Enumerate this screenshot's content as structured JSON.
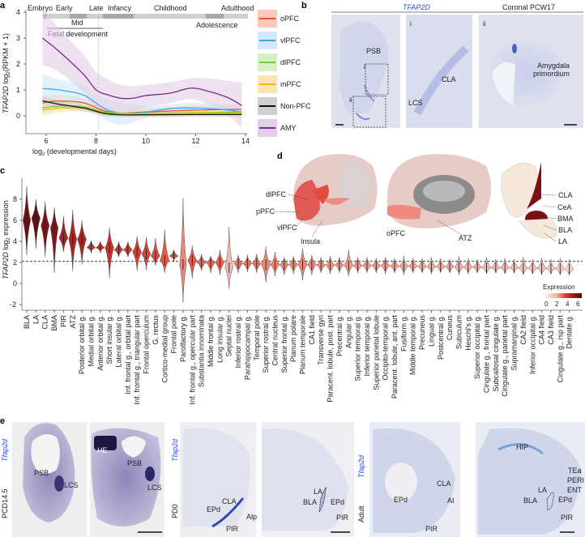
{
  "panels": {
    "a": "a",
    "b": "b",
    "c": "c",
    "d": "d",
    "e": "e"
  },
  "chart_data": [
    {
      "id": "panel-a",
      "type": "line",
      "xlabel_pre": "log",
      "xlabel_sub": "2",
      "xlabel_post": " (developmental days)",
      "ylabel_gene": "TFAP2D",
      "ylabel_pre": " log",
      "ylabel_sub": "2",
      "ylabel_post": "(RPKM + 1)",
      "xlim": [
        5.2,
        14.1
      ],
      "ylim": [
        -0.5,
        4.2
      ],
      "xticks": [
        6,
        8,
        10,
        12,
        14
      ],
      "yticks": [
        0,
        1,
        2,
        3,
        4
      ],
      "stages": {
        "embryo": "Embryo",
        "early": "Early",
        "mid": "Mid",
        "late": "Late",
        "infancy": "Infancy",
        "childhood": "Childhood",
        "adolescence": "Adolescence",
        "adulthood": "Adulthood",
        "fetal": "Fetal development"
      },
      "vline_x": 8.1,
      "series": [
        {
          "name": "oPFC",
          "color": "#f0502a",
          "band": "#f9c9bb",
          "x": [
            5.85,
            6.5,
            7.5,
            8.3,
            9,
            10,
            12,
            13.85
          ],
          "y": [
            0.5,
            0.57,
            0.5,
            0.2,
            0.1,
            0.15,
            0.22,
            0.25
          ],
          "lo": [
            0.25,
            0.35,
            0.3,
            0.0,
            -0.05,
            0.0,
            0.05,
            0.05
          ],
          "hi": [
            0.8,
            0.8,
            0.7,
            0.4,
            0.25,
            0.3,
            0.4,
            0.45
          ]
        },
        {
          "name": "vlPFC",
          "color": "#3aa9ef",
          "band": "#cfe8fa",
          "x": [
            5.85,
            6.5,
            7.5,
            8.3,
            9,
            10,
            11,
            12,
            13,
            13.85
          ],
          "y": [
            1.05,
            1.0,
            0.8,
            0.3,
            0.1,
            0.15,
            0.28,
            0.3,
            0.25,
            0.15
          ],
          "lo": [
            0.6,
            0.65,
            0.45,
            -0.1,
            -0.35,
            -0.1,
            0.1,
            0.12,
            0.05,
            -0.1
          ],
          "hi": [
            1.6,
            1.4,
            1.2,
            0.7,
            0.5,
            0.4,
            0.45,
            0.5,
            0.45,
            0.4
          ]
        },
        {
          "name": "dlPFC",
          "color": "#6ccf3a",
          "band": "#d6f0c6",
          "x": [
            5.85,
            6.5,
            7.5,
            8.3,
            9,
            10,
            12,
            13.85
          ],
          "y": [
            0.3,
            0.38,
            0.35,
            0.15,
            0.1,
            0.1,
            0.12,
            0.15
          ],
          "lo": [
            0.1,
            0.2,
            0.2,
            0.0,
            -0.02,
            -0.02,
            0.0,
            0.0
          ],
          "hi": [
            0.5,
            0.55,
            0.5,
            0.3,
            0.22,
            0.22,
            0.25,
            0.3
          ]
        },
        {
          "name": "mPFC",
          "color": "#f7b500",
          "band": "#fbe6b0",
          "x": [
            5.85,
            6.5,
            7.5,
            8.3,
            9,
            10,
            12,
            13.85
          ],
          "y": [
            0.22,
            0.3,
            0.3,
            0.12,
            0.08,
            0.08,
            0.1,
            0.1
          ],
          "lo": [
            0.0,
            0.12,
            0.15,
            0.0,
            -0.04,
            -0.04,
            -0.04,
            -0.05
          ],
          "hi": [
            0.45,
            0.48,
            0.45,
            0.25,
            0.2,
            0.2,
            0.22,
            0.25
          ]
        },
        {
          "name": "Non-PFC",
          "color": "#111111",
          "band": "#cfcfcf",
          "x": [
            5.85,
            6.5,
            7.5,
            8.3,
            9,
            10,
            12,
            13.85
          ],
          "y": [
            0.58,
            0.45,
            0.3,
            0.1,
            0.04,
            0.04,
            0.05,
            0.05
          ],
          "lo": [
            0.4,
            0.3,
            0.18,
            0.0,
            -0.04,
            -0.04,
            -0.03,
            -0.03
          ],
          "hi": [
            0.75,
            0.6,
            0.42,
            0.2,
            0.12,
            0.12,
            0.13,
            0.14
          ]
        },
        {
          "name": "AMY",
          "color": "#7a2a8c",
          "band": "#e2cfe6",
          "x": [
            5.85,
            6.5,
            7.5,
            8,
            8.5,
            9,
            9.5,
            10,
            11,
            11.8,
            12.5,
            13.3,
            13.85
          ],
          "y": [
            3.0,
            2.5,
            1.6,
            1.0,
            0.8,
            0.68,
            0.68,
            0.78,
            0.88,
            1.07,
            0.95,
            0.7,
            0.4
          ],
          "lo": [
            1.95,
            1.7,
            0.9,
            0.3,
            0.15,
            0.15,
            0.2,
            0.35,
            0.5,
            0.65,
            0.45,
            0.0,
            -0.45
          ],
          "hi": [
            4.1,
            3.4,
            2.35,
            1.7,
            1.4,
            1.2,
            1.15,
            1.2,
            1.3,
            1.45,
            1.45,
            1.35,
            1.3
          ]
        }
      ]
    },
    {
      "id": "panel-c",
      "type": "violin",
      "ylabel_gene": "TFAP2D",
      "ylabel_pre": " log",
      "ylabel_sub": "2",
      "ylabel_post": " expression",
      "yticks": [
        -2,
        0,
        2,
        4,
        6,
        8
      ],
      "threshold": 2.1,
      "legend_title": "Expression",
      "legend_ticks": [
        "0",
        "2",
        "4",
        "6"
      ],
      "categories": [
        "BLA",
        "LA",
        "CLA",
        "BMA",
        "PIR",
        "ATZ",
        "Posterior orbital g.",
        "Medial orbital g.",
        "Anterior orbital g.",
        "Short insular g.",
        "Lateral orbital g.",
        "Inf. frontal g., orbital part",
        "Inf. frontal g., triangular part",
        "Frontal operculum",
        "G. rectus",
        "Cortico-medial group",
        "Frontal pole",
        "Parolfactory g.",
        "Inf. frontal g., opercular part",
        "Substantia innominata",
        "Middle frontal g.",
        "Long insular g.",
        "Septal nuclei",
        "Inferior rostral g.",
        "Parahippocampal g.",
        "Temporal pole",
        "Superior rostral g.",
        "Central nucleus",
        "Superior frontal g.",
        "Planum polare",
        "Planum temporale",
        "CA1 field",
        "Transverse gyri",
        "Paracent. lobule, post. part",
        "Precentral g.",
        "Angular g.",
        "Superior temporal g.",
        "Inferior temporal g.",
        "Superior parietal lobule",
        "Occipito-temporal g.",
        "Paracent. lobule, ant. part",
        "Fusiform g.",
        "Middle temporal g.",
        "Precuneus",
        "Lingual g.",
        "Postcentral g.",
        "Cuneus",
        "Subiculum",
        "Heschl's g.",
        "Superior occipital g.",
        "Cingulate g., frontal part",
        "Subcallosal cingulate g.",
        "Cingulate g., parietal part",
        "Supramarginal g.",
        "CA2 field",
        "Inferior occipital g.",
        "CA4 field",
        "CA3 field",
        "Cingulate g., rsp part",
        "Dentate g."
      ],
      "median": [
        6.0,
        6.2,
        5.5,
        5.3,
        4.3,
        4.2,
        4.2,
        3.4,
        3.4,
        3.4,
        3.2,
        3.2,
        3.0,
        2.8,
        2.6,
        2.2,
        2.6,
        1.8,
        2.2,
        2.0,
        2.0,
        2.0,
        1.5,
        1.9,
        1.9,
        1.9,
        1.8,
        1.8,
        1.8,
        1.8,
        1.8,
        1.8,
        1.75,
        1.75,
        1.75,
        1.7,
        1.7,
        1.7,
        1.7,
        1.7,
        1.65,
        1.65,
        1.65,
        1.6,
        1.6,
        1.6,
        1.6,
        1.55,
        1.55,
        1.55,
        1.5,
        1.5,
        1.5,
        1.5,
        1.45,
        1.45,
        1.45,
        1.4,
        1.4,
        1.35
      ],
      "min": [
        2.7,
        3.3,
        2.5,
        1.0,
        3.0,
        1.2,
        1.8,
        3.0,
        3.0,
        0.5,
        2.5,
        2.5,
        1.2,
        1.3,
        1.7,
        1.0,
        2.2,
        -1.8,
        0.5,
        1.2,
        1.0,
        0.8,
        -0.5,
        1.0,
        1.1,
        1.0,
        0.1,
        0.7,
        0.8,
        0.9,
        0.3,
        0.8,
        1.0,
        0.9,
        1.0,
        0.7,
        1.0,
        1.0,
        1.0,
        0.9,
        1.0,
        0.8,
        1.0,
        1.0,
        0.9,
        1.0,
        1.0,
        0.8,
        0.9,
        1.0,
        0.9,
        1.0,
        0.9,
        1.0,
        0.8,
        0.9,
        0.8,
        0.9,
        0.8,
        0.8
      ],
      "max": [
        9.2,
        8.0,
        7.8,
        7.2,
        6.4,
        7.0,
        6.0,
        4.1,
        4.0,
        5.3,
        4.0,
        4.0,
        4.5,
        4.4,
        4.3,
        5.1,
        3.2,
        8.1,
        3.6,
        2.8,
        2.6,
        3.2,
        5.4,
        2.7,
        2.7,
        2.8,
        3.5,
        3.0,
        2.5,
        2.6,
        3.3,
        2.7,
        2.5,
        2.6,
        2.5,
        3.2,
        2.5,
        2.5,
        2.4,
        2.5,
        2.4,
        2.6,
        2.4,
        2.4,
        2.5,
        2.4,
        2.3,
        2.6,
        2.4,
        2.3,
        2.5,
        2.3,
        2.4,
        2.3,
        2.5,
        2.3,
        2.4,
        2.3,
        2.4,
        2.3
      ]
    }
  ],
  "panel_b": {
    "title_gene": "TFAP2D",
    "title_right": "Coronal PCW17",
    "psb": "PSB",
    "inset_i": "i",
    "inset_ii": "ii",
    "cla": "CLA",
    "lcs": "LCS",
    "amygdala_1": "Amygdala",
    "amygdala_2": "primordium"
  },
  "panel_d": {
    "dlpfc": "dlPFC",
    "ppfc": "pPFC",
    "vlpfc": "vlPFC",
    "insula": "Insula",
    "opfc": "oPFC",
    "atz": "ATZ",
    "cla": "CLA",
    "cea": "CeA",
    "bma": "BMA",
    "bla": "BLA",
    "la": "LA"
  },
  "panel_e": {
    "gene": "Tfap2d",
    "age_1": "PCD14.5",
    "age_2": "PD0",
    "age_3": "Adult",
    "img1": {
      "psb": "PSB",
      "lcs": "LCS"
    },
    "img2": {
      "he": "HE",
      "psb": "PSB",
      "lcs": "LCS"
    },
    "img3": {
      "cla": "CLA",
      "epd": "EPd",
      "alp": "Alp",
      "pir": "PIR"
    },
    "img4": {
      "la": "LA",
      "bla": "BLA",
      "epd": "EPd",
      "pir": "PIR"
    },
    "img5": {
      "cla": "CLA",
      "epd": "EPd",
      "ai": "AI",
      "pir": "PIR"
    },
    "img6": {
      "hip": "HIP",
      "tea": "TEa",
      "peri": "PERI",
      "ent": "ENT",
      "la": "LA",
      "bla": "BLA",
      "epd": "EPd",
      "pir": "PIR"
    }
  }
}
